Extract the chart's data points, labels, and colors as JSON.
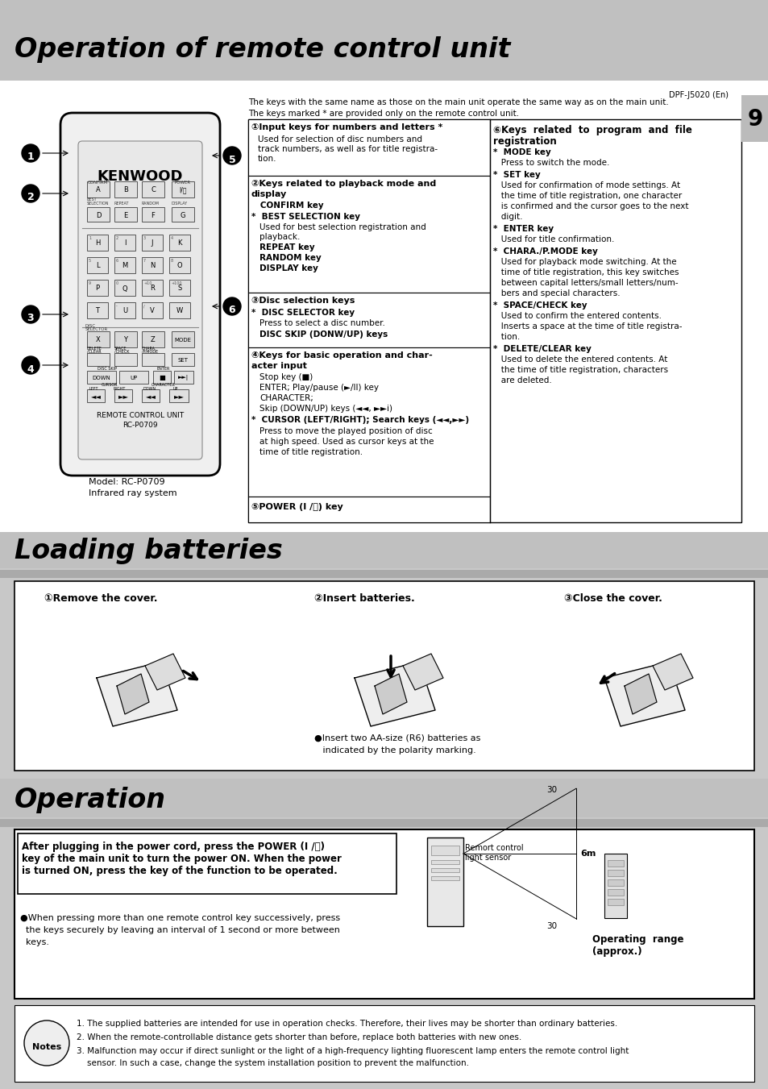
{
  "bg_color": "#c8c8c8",
  "white": "#ffffff",
  "black": "#000000",
  "light_gray": "#d0d0d0",
  "page_number": "9",
  "model_text": "DPF-J5020 (En)",
  "title1": "Operation of remote control unit",
  "title2": "Loading batteries",
  "title3": "Operation",
  "header_note1": "The keys with the same name as those on the main unit operate the same way as on the main unit.",
  "header_note2": "The keys marked * are provided only on the remote control unit.",
  "s1_title": "①Input keys for numbers and letters *",
  "s1_l1": "Used for selection of disc numbers and",
  "s1_l2": "track numbers, as well as for title registra-",
  "s1_l3": "tion.",
  "s2_title": "②Keys related to playback mode and",
  "s2_title2": "display",
  "s2_l1": "   CONFIRM key",
  "s2_l2": "*  BEST SELECTION key",
  "s2_l3": "   Used for best selection registration and",
  "s2_l4": "   playback.",
  "s2_l5": "   REPEAT key",
  "s2_l6": "   RANDOM key",
  "s2_l7": "   DISPLAY key",
  "s3_title": "③Disc selection keys",
  "s3_l1": "*  DISC SELECTOR key",
  "s3_l2": "   Press to select a disc number.",
  "s3_l3": "   DISC SKIP (DONW/UP) keys",
  "s4_title": "④Keys for basic operation and char-",
  "s4_title2": "acter input",
  "s4_l1": "   Stop key (■)",
  "s4_l2": "   ENTER; Play/pause (►/II) key",
  "s4_l3": "   CHARACTER;",
  "s4_l4": "   Skip (DOWN/UP) keys (◄◄, ►►i)",
  "s4_l5": "*  CURSOR (LEFT/RIGHT); Search keys (◄◄,►►)",
  "s4_l6": "   Press to move the played position of disc",
  "s4_l7": "   at high speed. Used as cursor keys at the",
  "s4_l8": "   time of title registration.",
  "s5_title": "⑤POWER (I /⏻) key",
  "s6_title1": "⑥Keys  related  to  program  and  file",
  "s6_title2": "registration",
  "s6_l1": "*  MODE key",
  "s6_l2": "   Press to switch the mode.",
  "s6_l3": "*  SET key",
  "s6_l4": "   Used for confirmation of mode settings. At",
  "s6_l5": "   the time of title registration, one character",
  "s6_l6": "   is confirmed and the cursor goes to the next",
  "s6_l7": "   digit.",
  "s6_l8": "*  ENTER key",
  "s6_l9": "   Used for title confirmation.",
  "s6_l10": "*  CHARA./P.MODE key",
  "s6_l11": "   Used for playback mode switching. At the",
  "s6_l12": "   time of title registration, this key switches",
  "s6_l13": "   between capital letters/small letters/num-",
  "s6_l14": "   bers and special characters.",
  "s6_l15": "*  SPACE/CHECK key",
  "s6_l16": "   Used to confirm the entered contents.",
  "s6_l17": "   Inserts a space at the time of title registra-",
  "s6_l18": "   tion.",
  "s6_l19": "*  DELETE/CLEAR key",
  "s6_l20": "   Used to delete the entered contents. At",
  "s6_l21": "   the time of title registration, characters",
  "s6_l22": "   are deleted.",
  "bat_step1": "①Remove the cover.",
  "bat_step2": "②Insert batteries.",
  "bat_step3": "③Close the cover.",
  "bat_note1": "●Insert two AA-size (R6) batteries as",
  "bat_note2": "   indicated by the polarity marking.",
  "op_body1": "After plugging in the power cord, press the POWER (I /⏻)",
  "op_body2": "key of the main unit to turn the power ON. When the power",
  "op_body3": "is turned ON, press the key of the function to be operated.",
  "op_note1": "●When pressing more than one remote control key successively, press",
  "op_note2": "  the keys securely by leaving an interval of 1 second or more between",
  "op_note3": "  keys.",
  "op_sensor": "Remort control\nlight sensor",
  "op_6m": "6m",
  "op_30": "30",
  "op_range": "Operating  range\n(approx.)",
  "notes_1": "1. The supplied batteries are intended for use in operation checks. Therefore, their lives may be shorter than ordinary batteries.",
  "notes_2": "2. When the remote-controllable distance gets shorter than before, replace both batteries with new ones.",
  "notes_3": "3. Malfunction may occur if direct sunlight or the light of a high-frequency lighting fluorescent lamp enters the remote control light",
  "notes_4": "    sensor. In such a case, change the system installation position to prevent the malfunction.",
  "remote_kenwood": "KENWOOD",
  "remote_unit": "REMOTE CONTROL UNIT",
  "remote_rc": "RC-P0709",
  "remote_model": "Model: RC-P0709",
  "remote_infrared": "Infrared ray system"
}
